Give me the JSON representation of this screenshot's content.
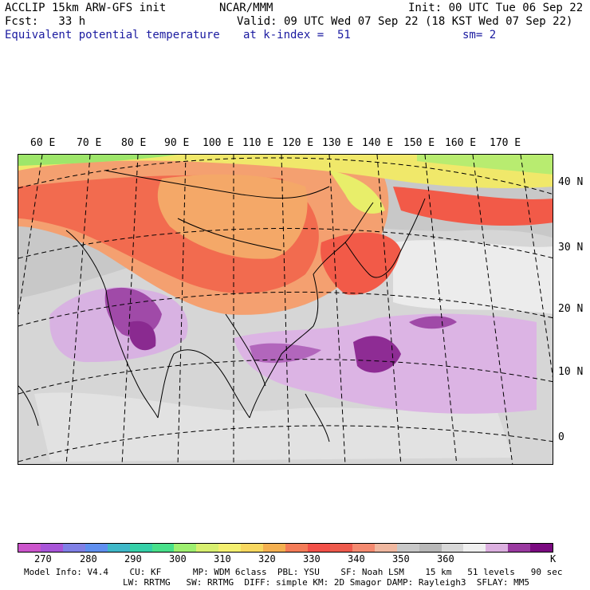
{
  "header": {
    "model": "ACCLIP 15km ARW-GFS init",
    "center": "NCAR/MMM",
    "init": "Init: 00 UTC Tue 06 Sep 22",
    "fcst": "Fcst:   33 h",
    "valid": "Valid: 09 UTC Wed 07 Sep 22 (18 KST Wed 07 Sep 22)",
    "field": "Equivalent potential temperature",
    "level": "at k-index =  51",
    "smooth": "sm= 2"
  },
  "map": {
    "lon_labels": [
      "60 E",
      "70 E",
      "80 E",
      "90 E",
      "100 E",
      "110 E",
      "120 E",
      "130 E",
      "140 E",
      "150 E",
      "160 E",
      "170 E"
    ],
    "lat_labels": [
      "40 N",
      "30 N",
      "20 N",
      "10 N",
      "0"
    ]
  },
  "colorbar": {
    "colors": [
      "#cc55cc",
      "#a855d8",
      "#8080e6",
      "#5f8ff0",
      "#3fb8c8",
      "#35d0a8",
      "#48e08a",
      "#9ef070",
      "#d8f070",
      "#f4f070",
      "#f8d860",
      "#f4b050",
      "#f47c58",
      "#f25048",
      "#ee5a4c",
      "#f48a70",
      "#f0b8a0",
      "#c8c8c8",
      "#b8b8b8",
      "#d8d8d8",
      "#f0f0f0",
      "#dcb0e0",
      "#9a3aa0",
      "#7a0a80"
    ],
    "ticks": [
      "270",
      "280",
      "290",
      "300",
      "310",
      "320",
      "330",
      "340",
      "350",
      "360"
    ],
    "unit": "K"
  },
  "footer": {
    "line1": "Model Info: V4.4    CU: KF      MP: WDM 6class  PBL: YSU    SF: Noah LSM    15 km   51 levels   90 sec",
    "line2": "LW: RRTMG   SW: RRTMG  DIFF: simple KM: 2D Smagor DAMP: Rayleigh3  SFLAY: MM5"
  }
}
